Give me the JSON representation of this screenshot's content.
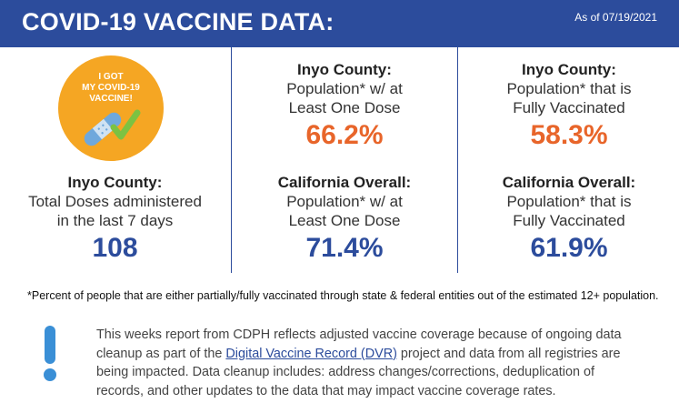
{
  "header": {
    "title": "COVID-19 VACCINE DATA:",
    "as_of": "As of 07/19/2021"
  },
  "badge": {
    "line1": "I GOT",
    "line2": "MY COVID-19",
    "line3": "VACCINE!"
  },
  "stats": {
    "inyo_doses": {
      "label": "Inyo County:",
      "desc1": "Total Doses administered",
      "desc2": "in the last 7 days",
      "value": "108"
    },
    "inyo_one_dose": {
      "label": "Inyo County:",
      "desc1": "Population* w/ at",
      "desc2": "Least One Dose",
      "value": "66.2%"
    },
    "ca_one_dose": {
      "label": "California Overall:",
      "desc1": "Population* w/ at",
      "desc2": "Least One Dose",
      "value": "71.4%"
    },
    "inyo_full": {
      "label": "Inyo County:",
      "desc1": "Population* that is",
      "desc2": "Fully Vaccinated",
      "value": "58.3%"
    },
    "ca_full": {
      "label": "California Overall:",
      "desc1": "Population* that is",
      "desc2": "Fully Vaccinated",
      "value": "61.9%"
    }
  },
  "footnote": "*Percent of people that are either partially/fully vaccinated through state & federal entities out of the estimated 12+ population.",
  "notice": {
    "before": "This weeks report from CDPH reflects adjusted vaccine coverage because of ongoing data cleanup as part of the ",
    "link": "Digital Vaccine Record (DVR)",
    "after": " project and data from all registries are being impacted. Data cleanup includes: address changes/corrections, deduplication of records, and other updates to the data that may impact vaccine coverage rates."
  },
  "colors": {
    "header_bg": "#2c4c9c",
    "orange": "#e8652a",
    "blue": "#2c4c9c",
    "badge_bg": "#f5a623"
  }
}
